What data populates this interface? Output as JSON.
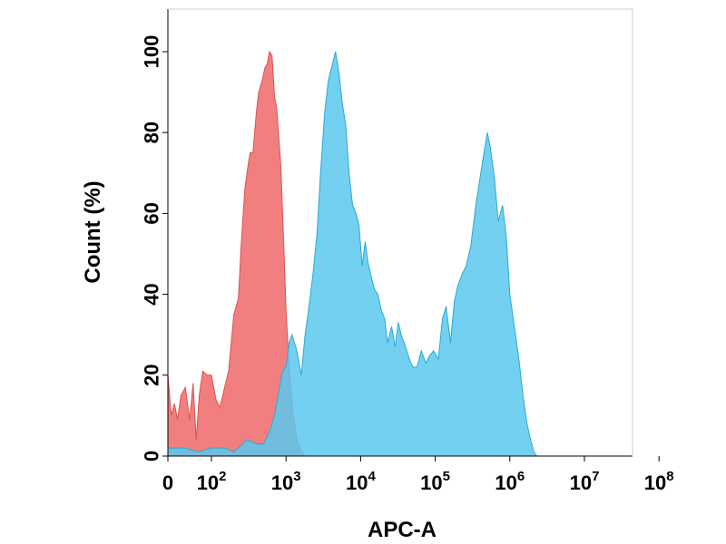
{
  "chart_data": {
    "type": "area",
    "title": "",
    "xlabel": "APC-A",
    "ylabel": "Count  (%)",
    "x_scale": "biexponential",
    "x_ticks": [
      {
        "value": 0,
        "base": "0",
        "exp": ""
      },
      {
        "value": 100,
        "base": "10",
        "exp": "2"
      },
      {
        "value": 1000,
        "base": "10",
        "exp": "3"
      },
      {
        "value": 10000,
        "base": "10",
        "exp": "4"
      },
      {
        "value": 100000,
        "base": "10",
        "exp": "5"
      },
      {
        "value": 1000000,
        "base": "10",
        "exp": "6"
      },
      {
        "value": 10000000,
        "base": "10",
        "exp": "7"
      },
      {
        "value": 100000000,
        "base": "10",
        "exp": "8"
      }
    ],
    "y_ticks": [
      0,
      20,
      40,
      60,
      80,
      100
    ],
    "ylim": [
      0,
      110
    ],
    "grid": false,
    "legend": "none",
    "series": [
      {
        "color": "#f27f80",
        "stroke": "#d9534f",
        "opacity": 1.0,
        "points": [
          [
            0,
            20
          ],
          [
            8,
            10
          ],
          [
            15,
            13
          ],
          [
            22,
            9
          ],
          [
            30,
            15
          ],
          [
            40,
            17
          ],
          [
            50,
            9
          ],
          [
            58,
            18
          ],
          [
            65,
            4
          ],
          [
            72,
            15
          ],
          [
            80,
            21
          ],
          [
            90,
            20
          ],
          [
            100,
            20
          ],
          [
            115,
            14
          ],
          [
            130,
            12
          ],
          [
            150,
            17
          ],
          [
            170,
            21
          ],
          [
            200,
            35
          ],
          [
            230,
            39
          ],
          [
            250,
            52
          ],
          [
            280,
            66
          ],
          [
            310,
            72
          ],
          [
            330,
            75
          ],
          [
            360,
            75
          ],
          [
            400,
            85
          ],
          [
            430,
            90
          ],
          [
            480,
            93
          ],
          [
            520,
            96
          ],
          [
            560,
            97
          ],
          [
            600,
            100
          ],
          [
            650,
            99
          ],
          [
            700,
            89
          ],
          [
            750,
            86
          ],
          [
            800,
            79
          ],
          [
            850,
            72
          ],
          [
            900,
            60
          ],
          [
            950,
            48
          ],
          [
            1000,
            36
          ],
          [
            1100,
            22
          ],
          [
            1250,
            10
          ],
          [
            1400,
            4
          ],
          [
            1600,
            1
          ],
          [
            1800,
            0
          ]
        ]
      },
      {
        "color": "#5bc8ef",
        "stroke": "#2aa8d6",
        "opacity": 0.85,
        "points": [
          [
            0,
            2
          ],
          [
            40,
            2
          ],
          [
            70,
            1
          ],
          [
            100,
            2
          ],
          [
            150,
            2
          ],
          [
            200,
            1
          ],
          [
            300,
            4
          ],
          [
            400,
            3
          ],
          [
            500,
            3
          ],
          [
            600,
            6
          ],
          [
            700,
            10
          ],
          [
            800,
            16
          ],
          [
            900,
            21
          ],
          [
            1000,
            22
          ],
          [
            1100,
            28
          ],
          [
            1200,
            30
          ],
          [
            1400,
            26
          ],
          [
            1600,
            20
          ],
          [
            1800,
            30
          ],
          [
            2000,
            36
          ],
          [
            2300,
            45
          ],
          [
            2600,
            55
          ],
          [
            2900,
            70
          ],
          [
            3300,
            85
          ],
          [
            3700,
            93
          ],
          [
            4200,
            97
          ],
          [
            4600,
            100
          ],
          [
            5100,
            95
          ],
          [
            5700,
            87
          ],
          [
            6300,
            82
          ],
          [
            7000,
            70
          ],
          [
            7800,
            62
          ],
          [
            8700,
            60
          ],
          [
            9500,
            57
          ],
          [
            10500,
            47
          ],
          [
            11500,
            53
          ],
          [
            12500,
            48
          ],
          [
            14000,
            44
          ],
          [
            15500,
            41
          ],
          [
            17000,
            40
          ],
          [
            19000,
            36
          ],
          [
            21000,
            34
          ],
          [
            23000,
            28
          ],
          [
            26000,
            32
          ],
          [
            29000,
            27
          ],
          [
            32000,
            33
          ],
          [
            35000,
            30
          ],
          [
            40000,
            27
          ],
          [
            45000,
            24
          ],
          [
            50000,
            22
          ],
          [
            57000,
            22
          ],
          [
            65000,
            26
          ],
          [
            75000,
            23
          ],
          [
            85000,
            25
          ],
          [
            95000,
            26
          ],
          [
            110000,
            24
          ],
          [
            125000,
            34
          ],
          [
            140000,
            37
          ],
          [
            160000,
            28
          ],
          [
            180000,
            38
          ],
          [
            200000,
            42
          ],
          [
            230000,
            45
          ],
          [
            260000,
            47
          ],
          [
            300000,
            52
          ],
          [
            350000,
            62
          ],
          [
            400000,
            69
          ],
          [
            450000,
            75
          ],
          [
            500000,
            80
          ],
          [
            550000,
            76
          ],
          [
            620000,
            69
          ],
          [
            700000,
            58
          ],
          [
            800000,
            62
          ],
          [
            900000,
            54
          ],
          [
            1000000,
            40
          ],
          [
            1150000,
            32
          ],
          [
            1300000,
            25
          ],
          [
            1500000,
            15
          ],
          [
            1700000,
            8
          ],
          [
            1900000,
            4
          ],
          [
            2100000,
            1
          ],
          [
            2300000,
            0
          ]
        ]
      }
    ]
  }
}
